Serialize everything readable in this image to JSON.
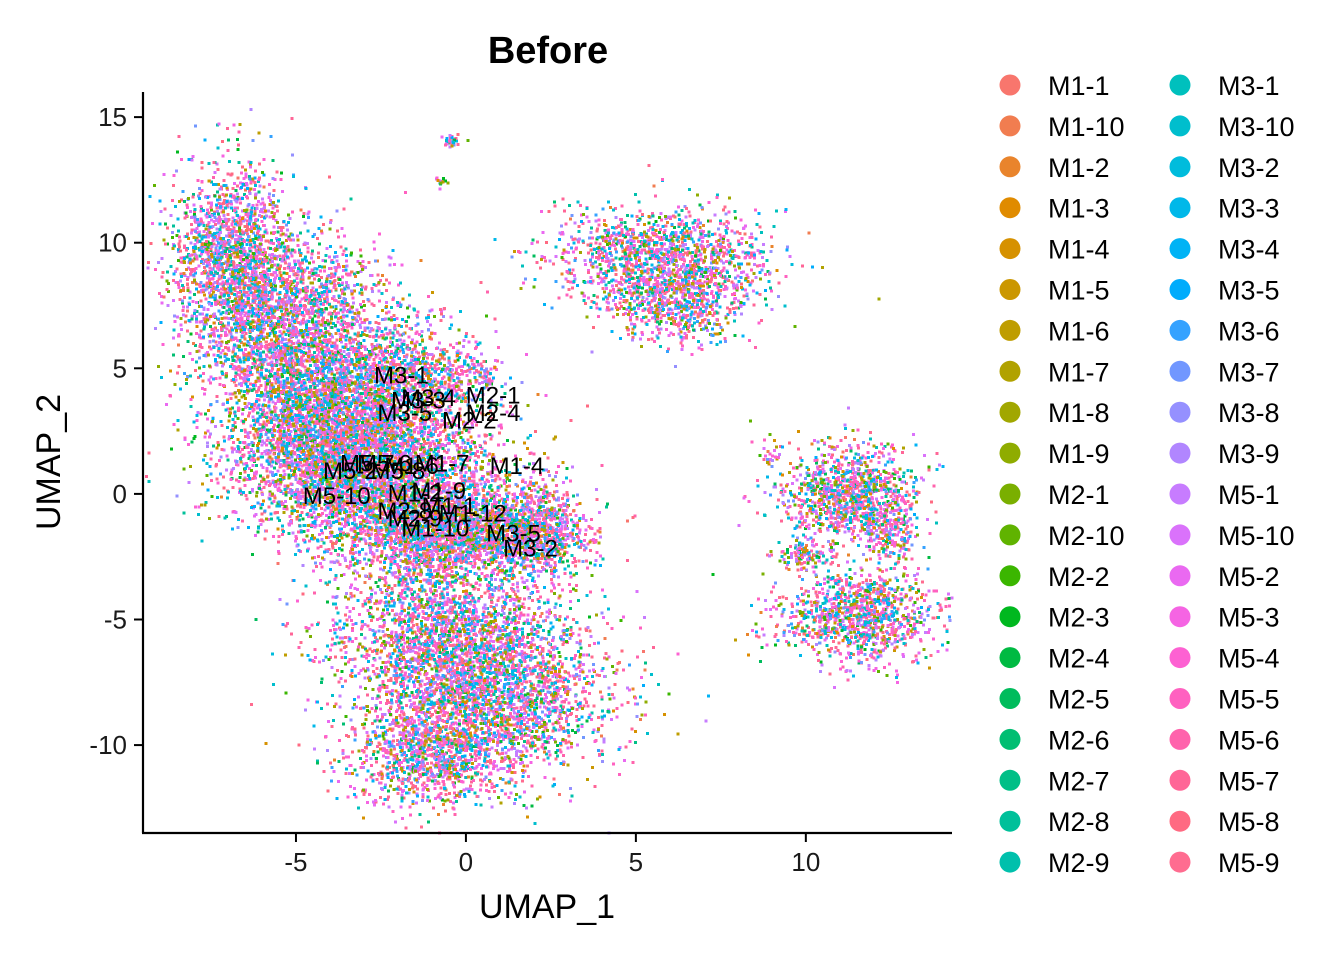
{
  "chart_data": {
    "type": "scatter",
    "title": "Before",
    "xlabel": "UMAP_1",
    "ylabel": "UMAP_2",
    "xlim": [
      -9.5,
      14.3
    ],
    "ylim": [
      -13.5,
      16
    ],
    "xticks": [
      -5,
      0,
      5,
      10
    ],
    "yticks": [
      -10,
      -5,
      0,
      5,
      10,
      15
    ],
    "grid": false,
    "legend_position": "right",
    "groups": [
      {
        "name": "M1-1",
        "color": "#F8766D"
      },
      {
        "name": "M1-10",
        "color": "#F17D50"
      },
      {
        "name": "M1-2",
        "color": "#E9842C"
      },
      {
        "name": "M1-3",
        "color": "#E08B00"
      },
      {
        "name": "M1-4",
        "color": "#D69100"
      },
      {
        "name": "M1-5",
        "color": "#CB9700"
      },
      {
        "name": "M1-6",
        "color": "#BF9D00"
      },
      {
        "name": "M1-7",
        "color": "#B1A200"
      },
      {
        "name": "M1-8",
        "color": "#A1A700"
      },
      {
        "name": "M1-9",
        "color": "#8FAC00"
      },
      {
        "name": "M2-1",
        "color": "#7AAF00"
      },
      {
        "name": "M2-10",
        "color": "#60B300"
      },
      {
        "name": "M2-2",
        "color": "#3BB600"
      },
      {
        "name": "M2-3",
        "color": "#00B81F"
      },
      {
        "name": "M2-4",
        "color": "#00BA42"
      },
      {
        "name": "M2-5",
        "color": "#00BC5C"
      },
      {
        "name": "M2-6",
        "color": "#00BE72"
      },
      {
        "name": "M2-7",
        "color": "#00BF87"
      },
      {
        "name": "M2-8",
        "color": "#00C09A"
      },
      {
        "name": "M2-9",
        "color": "#00C0AC"
      },
      {
        "name": "M3-1",
        "color": "#00C0BD"
      },
      {
        "name": "M3-10",
        "color": "#00BECD"
      },
      {
        "name": "M3-2",
        "color": "#00BCDC"
      },
      {
        "name": "M3-3",
        "color": "#00B8E9"
      },
      {
        "name": "M3-4",
        "color": "#00B3F5"
      },
      {
        "name": "M3-5",
        "color": "#00ACFC"
      },
      {
        "name": "M3-6",
        "color": "#35A2FF"
      },
      {
        "name": "M3-7",
        "color": "#7197FF"
      },
      {
        "name": "M3-8",
        "color": "#9590FF"
      },
      {
        "name": "M3-9",
        "color": "#B186FF"
      },
      {
        "name": "M5-1",
        "color": "#C77CFF"
      },
      {
        "name": "M5-10",
        "color": "#DA72FB"
      },
      {
        "name": "M5-2",
        "color": "#EA69F1"
      },
      {
        "name": "M5-3",
        "color": "#F564E3"
      },
      {
        "name": "M5-4",
        "color": "#FD61D2"
      },
      {
        "name": "M5-5",
        "color": "#FF61C0"
      },
      {
        "name": "M5-6",
        "color": "#FF63AC"
      },
      {
        "name": "M5-7",
        "color": "#FF6697"
      },
      {
        "name": "M5-8",
        "color": "#FF6A82"
      },
      {
        "name": "M5-9",
        "color": "#FF6C90"
      }
    ],
    "cluster_blobs": [
      {
        "x": -6.9,
        "y": 9.5,
        "sx": 0.9,
        "sy": 1.8,
        "n": 1600
      },
      {
        "x": -5.2,
        "y": 7.0,
        "sx": 1.4,
        "sy": 1.6,
        "n": 2000
      },
      {
        "x": -4.2,
        "y": 3.5,
        "sx": 1.5,
        "sy": 1.5,
        "n": 2600
      },
      {
        "x": -3.0,
        "y": 1.0,
        "sx": 2.0,
        "sy": 1.3,
        "n": 3000
      },
      {
        "x": -1.5,
        "y": 4.5,
        "sx": 1.0,
        "sy": 1.2,
        "n": 900
      },
      {
        "x": -1.0,
        "y": -1.3,
        "sx": 1.7,
        "sy": 1.0,
        "n": 2200
      },
      {
        "x": 1.8,
        "y": -1.5,
        "sx": 0.9,
        "sy": 0.8,
        "n": 900
      },
      {
        "x": -0.5,
        "y": -5.5,
        "sx": 1.8,
        "sy": 1.8,
        "n": 2400
      },
      {
        "x": 0.8,
        "y": -8.2,
        "sx": 1.7,
        "sy": 1.5,
        "n": 2000
      },
      {
        "x": -1.2,
        "y": -10.5,
        "sx": 1.2,
        "sy": 0.9,
        "n": 900
      },
      {
        "x": 5.6,
        "y": 9.5,
        "sx": 1.6,
        "sy": 1.0,
        "n": 1300
      },
      {
        "x": 6.3,
        "y": 7.7,
        "sx": 1.0,
        "sy": 0.8,
        "n": 700
      },
      {
        "x": -0.5,
        "y": 14.1,
        "sx": 0.15,
        "sy": 0.12,
        "n": 30
      },
      {
        "x": -0.8,
        "y": 12.5,
        "sx": 0.1,
        "sy": 0.1,
        "n": 15
      },
      {
        "x": 0.4,
        "y": 4.8,
        "sx": 0.3,
        "sy": 0.4,
        "n": 60
      },
      {
        "x": 11.3,
        "y": 0.0,
        "sx": 1.0,
        "sy": 1.0,
        "n": 1100
      },
      {
        "x": 12.4,
        "y": -1.3,
        "sx": 0.4,
        "sy": 0.8,
        "n": 200
      },
      {
        "x": 11.5,
        "y": -4.8,
        "sx": 1.2,
        "sy": 0.9,
        "n": 1100
      },
      {
        "x": 9.9,
        "y": -2.4,
        "sx": 0.4,
        "sy": 0.3,
        "n": 120
      },
      {
        "x": 8.9,
        "y": 1.8,
        "sx": 0.2,
        "sy": 0.4,
        "n": 25
      }
    ],
    "cluster_labels": [
      {
        "text": "M3-1",
        "x": -1.9,
        "y": 4.4
      },
      {
        "text": "M2-1",
        "x": 0.8,
        "y": 3.6
      },
      {
        "text": "M3-4",
        "x": -1.1,
        "y": 3.5
      },
      {
        "text": "M3-3",
        "x": -1.4,
        "y": 3.4
      },
      {
        "text": "M3-5",
        "x": -1.8,
        "y": 2.9
      },
      {
        "text": "M2-4",
        "x": 0.8,
        "y": 2.9
      },
      {
        "text": "M2-2",
        "x": 0.1,
        "y": 2.6
      },
      {
        "text": "M1-4",
        "x": 1.5,
        "y": 0.8
      },
      {
        "text": "M1-7",
        "x": -0.7,
        "y": 0.9
      },
      {
        "text": "M5-7",
        "x": -2.9,
        "y": 0.9
      },
      {
        "text": "M5-6",
        "x": -2.4,
        "y": 0.9
      },
      {
        "text": "M1-6",
        "x": -1.6,
        "y": 0.8
      },
      {
        "text": "M5-8",
        "x": -2.0,
        "y": 0.6
      },
      {
        "text": "M5-2",
        "x": -3.4,
        "y": 0.6
      },
      {
        "text": "M5-10",
        "x": -3.8,
        "y": -0.4
      },
      {
        "text": "M1-9",
        "x": -0.8,
        "y": -0.2
      },
      {
        "text": "M1-2",
        "x": -1.5,
        "y": -0.3
      },
      {
        "text": "M1-1",
        "x": -0.5,
        "y": -0.8
      },
      {
        "text": "M1-12",
        "x": 0.2,
        "y": -1.1
      },
      {
        "text": "M2-8",
        "x": -1.8,
        "y": -1.0
      },
      {
        "text": "M2-9",
        "x": -1.5,
        "y": -1.3
      },
      {
        "text": "M1-10",
        "x": -0.9,
        "y": -1.7
      },
      {
        "text": "M3-5",
        "x": 1.4,
        "y": -1.9
      },
      {
        "text": "M3-2",
        "x": 1.9,
        "y": -2.5
      }
    ]
  }
}
